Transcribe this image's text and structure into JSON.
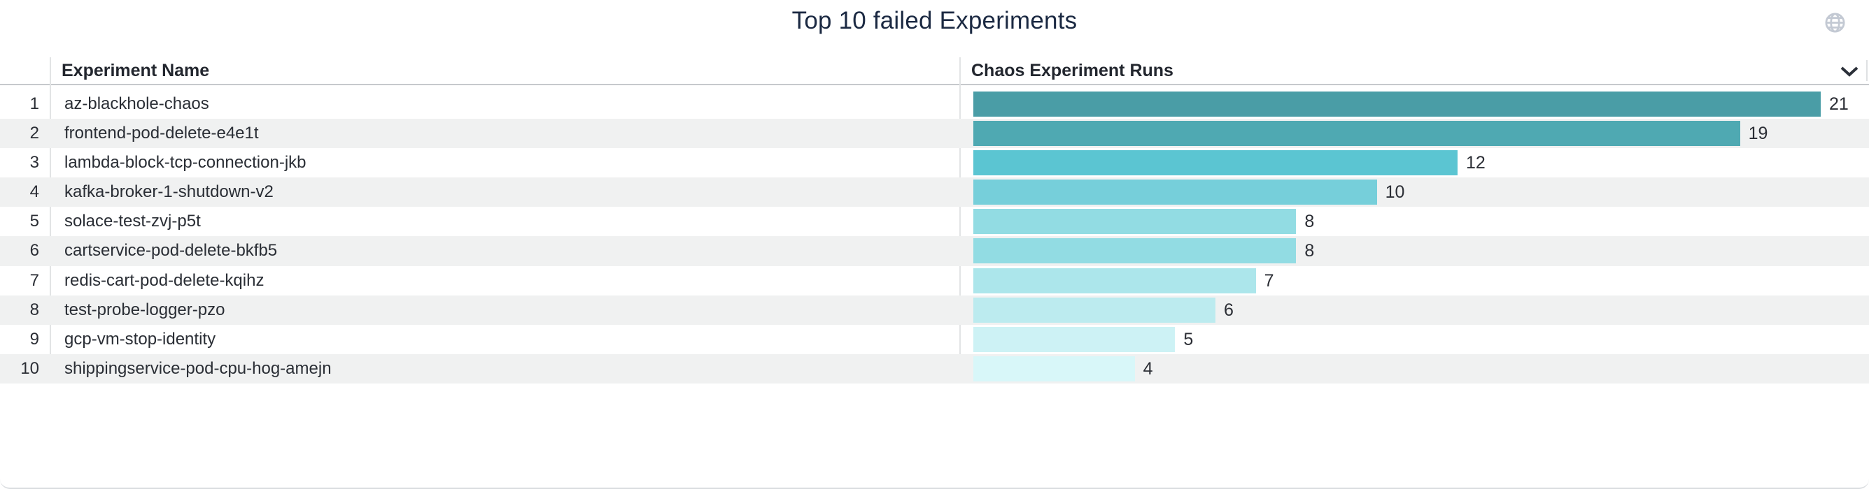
{
  "panel": {
    "title": "Top 10 failed Experiments"
  },
  "header": {
    "experiment_name": "Experiment Name",
    "runs": "Chaos Experiment Runs"
  },
  "icons": {
    "top_right": "globe-icon",
    "column_sort": "chevron-down-icon"
  },
  "colors": {
    "title_text": "#1b2942",
    "header_text": "#22262e",
    "row_text": "#2a2e35",
    "value_text": "#2b2e35",
    "alt_row_bg": "#f0f1f1",
    "header_underline": "#c6c9cc",
    "column_divider": "#e2e4e5",
    "globe_icon": "#c3c9d3",
    "chevron_icon": "#2b3039"
  },
  "chart_data": {
    "type": "bar",
    "orientation": "horizontal",
    "title": "Top 10 failed Experiments",
    "xlabel": "Chaos Experiment Runs",
    "ylabel": "Experiment Name",
    "xlim": [
      0,
      21
    ],
    "grid": false,
    "legend": "none",
    "value_labels": true,
    "ranks": [
      "1",
      "2",
      "3",
      "4",
      "5",
      "6",
      "7",
      "8",
      "9",
      "10"
    ],
    "categories": [
      "az-blackhole-chaos",
      "frontend-pod-delete-e4e1t",
      "lambda-block-tcp-connection-jkb",
      "kafka-broker-1-shutdown-v2",
      "solace-test-zvj-p5t",
      "cartservice-pod-delete-bkfb5",
      "redis-cart-pod-delete-kqihz",
      "test-probe-logger-pzo",
      "gcp-vm-stop-identity",
      "shippingservice-pod-cpu-hog-amejn"
    ],
    "values": [
      21,
      19,
      12,
      10,
      8,
      8,
      7,
      6,
      5,
      4
    ],
    "bar_colors": [
      "#4a9da6",
      "#4fa9b2",
      "#5bc5d2",
      "#76cfda",
      "#92dce3",
      "#92dce3",
      "#ace6eb",
      "#bcebef",
      "#cdf2f5",
      "#d8f7f9"
    ]
  }
}
